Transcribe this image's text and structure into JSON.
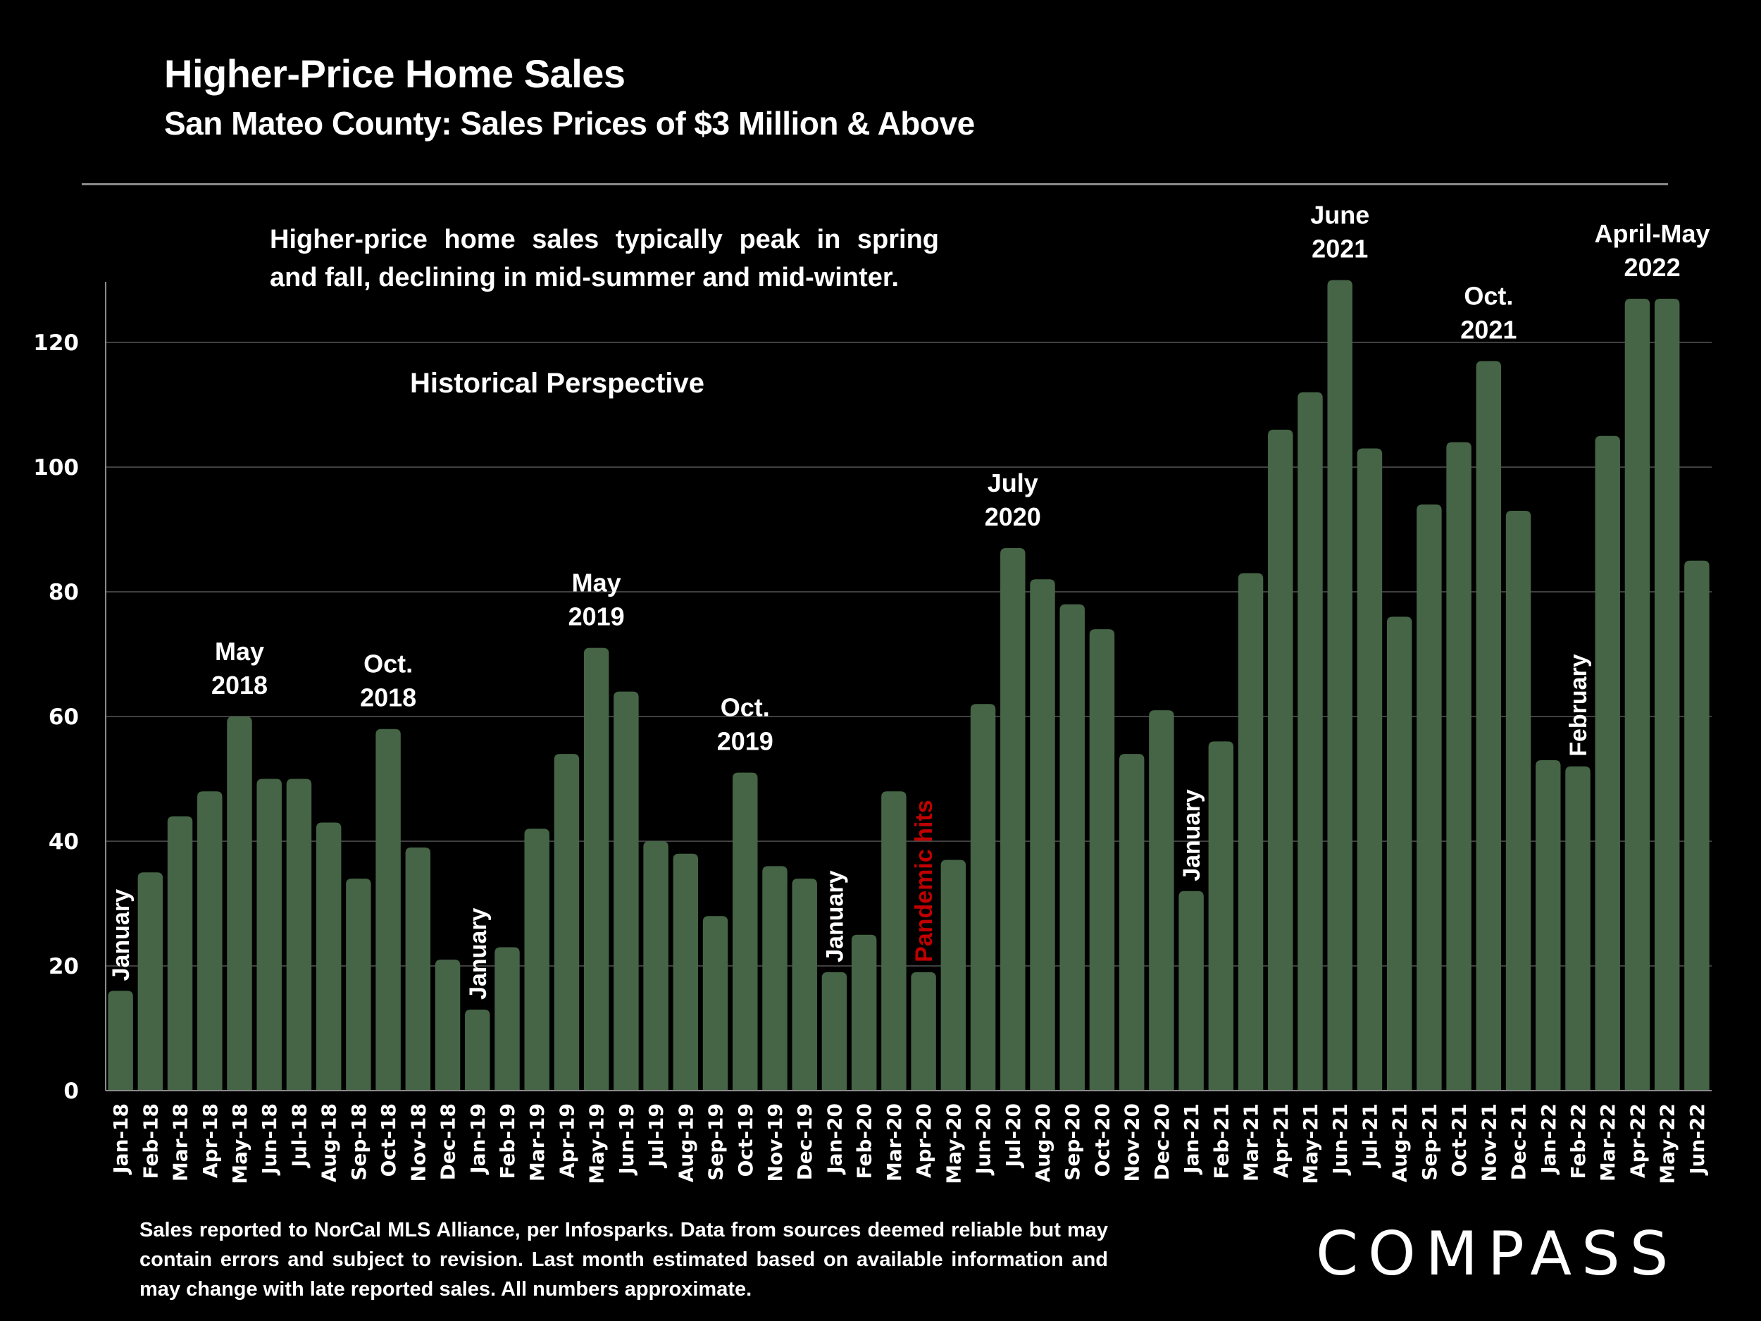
{
  "header": {
    "title": "Higher-Price Home Sales",
    "subtitle": "San Mateo County: Sales Prices of $3 Million & Above"
  },
  "notes": {
    "seasonal": "Higher-price home sales typically peak in spring and fall, declining in mid-summer and mid-winter.",
    "historical": "Historical Perspective"
  },
  "footer": {
    "disclaimer": "Sales reported to NorCal MLS Alliance, per Infosparks. Data from sources deemed reliable but may contain errors and subject to revision. Last month estimated based on available information and may change with late reported sales. All numbers approximate.",
    "brand": "COMPASS"
  },
  "colors": {
    "bar": "#456546",
    "background": "#000000",
    "text": "#ffffff",
    "highlight": "#c00000",
    "grid": "#555555"
  },
  "chart_data": {
    "type": "bar",
    "title": "Higher-Price Home Sales",
    "subtitle": "San Mateo County: Sales Prices of $3 Million & Above",
    "xlabel": "",
    "ylabel": "",
    "ylim": [
      0,
      130
    ],
    "yticks": [
      0,
      20,
      40,
      60,
      80,
      100,
      120
    ],
    "grid": true,
    "legend": "none",
    "categories": [
      "Jan-18",
      "Feb-18",
      "Mar-18",
      "Apr-18",
      "May-18",
      "Jun-18",
      "Jul-18",
      "Aug-18",
      "Sep-18",
      "Oct-18",
      "Nov-18",
      "Dec-18",
      "Jan-19",
      "Feb-19",
      "Mar-19",
      "Apr-19",
      "May-19",
      "Jun-19",
      "Jul-19",
      "Aug-19",
      "Sep-19",
      "Oct-19",
      "Nov-19",
      "Dec-19",
      "Jan-20",
      "Feb-20",
      "Mar-20",
      "Apr-20",
      "May-20",
      "Jun-20",
      "Jul-20",
      "Aug-20",
      "Sep-20",
      "Oct-20",
      "Nov-20",
      "Dec-20",
      "Jan-21",
      "Feb-21",
      "Mar-21",
      "Apr-21",
      "May-21",
      "Jun-21",
      "Jul-21",
      "Aug-21",
      "Sep-21",
      "Oct-21",
      "Nov-21",
      "Dec-21",
      "Jan-22",
      "Feb-22",
      "Mar-22",
      "Apr-22",
      "May-22",
      "Jun-22"
    ],
    "values": [
      16,
      35,
      44,
      48,
      60,
      50,
      50,
      43,
      34,
      58,
      39,
      21,
      13,
      23,
      42,
      54,
      71,
      64,
      40,
      38,
      28,
      51,
      36,
      34,
      19,
      25,
      48,
      19,
      37,
      62,
      87,
      82,
      78,
      74,
      54,
      61,
      32,
      56,
      83,
      106,
      112,
      130,
      103,
      76,
      94,
      104,
      117,
      93,
      53,
      52,
      105,
      127,
      127,
      85
    ],
    "annotations": [
      {
        "category": "Jan-18",
        "text": "January",
        "rotated": true,
        "color": "#ffffff"
      },
      {
        "category": "May-18",
        "text": "May\n2018",
        "rotated": false,
        "color": "#ffffff"
      },
      {
        "category": "Oct-18",
        "text": "Oct.\n2018",
        "rotated": false,
        "color": "#ffffff"
      },
      {
        "category": "Jan-19",
        "text": "January",
        "rotated": true,
        "color": "#ffffff"
      },
      {
        "category": "May-19",
        "text": "May\n2019",
        "rotated": false,
        "color": "#ffffff"
      },
      {
        "category": "Oct-19",
        "text": "Oct.\n2019",
        "rotated": false,
        "color": "#ffffff"
      },
      {
        "category": "Jan-20",
        "text": "January",
        "rotated": true,
        "color": "#ffffff"
      },
      {
        "category": "Apr-20",
        "text": "Pandemic hits",
        "rotated": true,
        "color": "#c00000"
      },
      {
        "category": "Jul-20",
        "text": "July\n2020",
        "rotated": false,
        "color": "#ffffff"
      },
      {
        "category": "Jan-21",
        "text": "January",
        "rotated": true,
        "color": "#ffffff"
      },
      {
        "category": "Jun-21",
        "text": "June\n2021",
        "rotated": false,
        "color": "#ffffff"
      },
      {
        "category": "Nov-21",
        "text": "Oct.\n2021",
        "rotated": false,
        "color": "#ffffff"
      },
      {
        "category": "Feb-22",
        "text": "February",
        "rotated": true,
        "color": "#ffffff"
      },
      {
        "category": "Apr-22",
        "text": "April-May\n2022",
        "rotated": false,
        "color": "#ffffff",
        "span_to": "May-22"
      }
    ]
  }
}
